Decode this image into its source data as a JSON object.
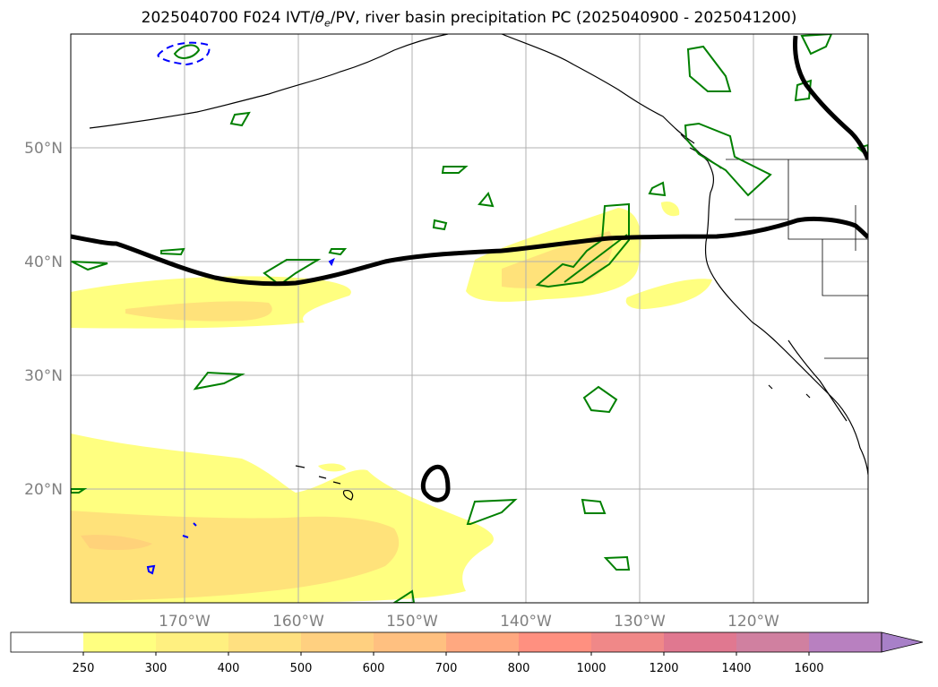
{
  "title": {
    "prefix": "2025040700 F024 IVT/",
    "theta": "θ",
    "theta_sub": "e",
    "suffix": "/PV, river basin precipitation PC (2025040900 - 2025041200)"
  },
  "map": {
    "lon_ticks": [
      "170°W",
      "160°W",
      "150°W",
      "140°W",
      "130°W",
      "120°W"
    ],
    "lat_ticks": [
      "50°N",
      "40°N",
      "30°N",
      "20°N"
    ],
    "lon_values": [
      -170,
      -160,
      -150,
      -140,
      -130,
      -120
    ],
    "lat_values": [
      50,
      40,
      30,
      20
    ],
    "extent": {
      "lon_min": -180,
      "lon_max": -110,
      "lat_min": 10,
      "lat_max": 60
    },
    "grid": true,
    "colors": {
      "coast": "#000000",
      "grid": "#b0b0b0",
      "jet_contour": "#000000",
      "pv_contour": "#008000",
      "precip_contour": "#0000ff"
    }
  },
  "colorbar": {
    "ticks": [
      "250",
      "300",
      "400",
      "500",
      "600",
      "700",
      "800",
      "1000",
      "1200",
      "1400",
      "1600"
    ],
    "colors": [
      "#ffffff",
      "#ffff80",
      "#fff080",
      "#ffe080",
      "#ffd080",
      "#ffc080",
      "#ffa880",
      "#ff9080",
      "#f08888",
      "#e07890",
      "#d080a0",
      "#b880c0",
      "#a880c8"
    ],
    "extend": "max"
  }
}
